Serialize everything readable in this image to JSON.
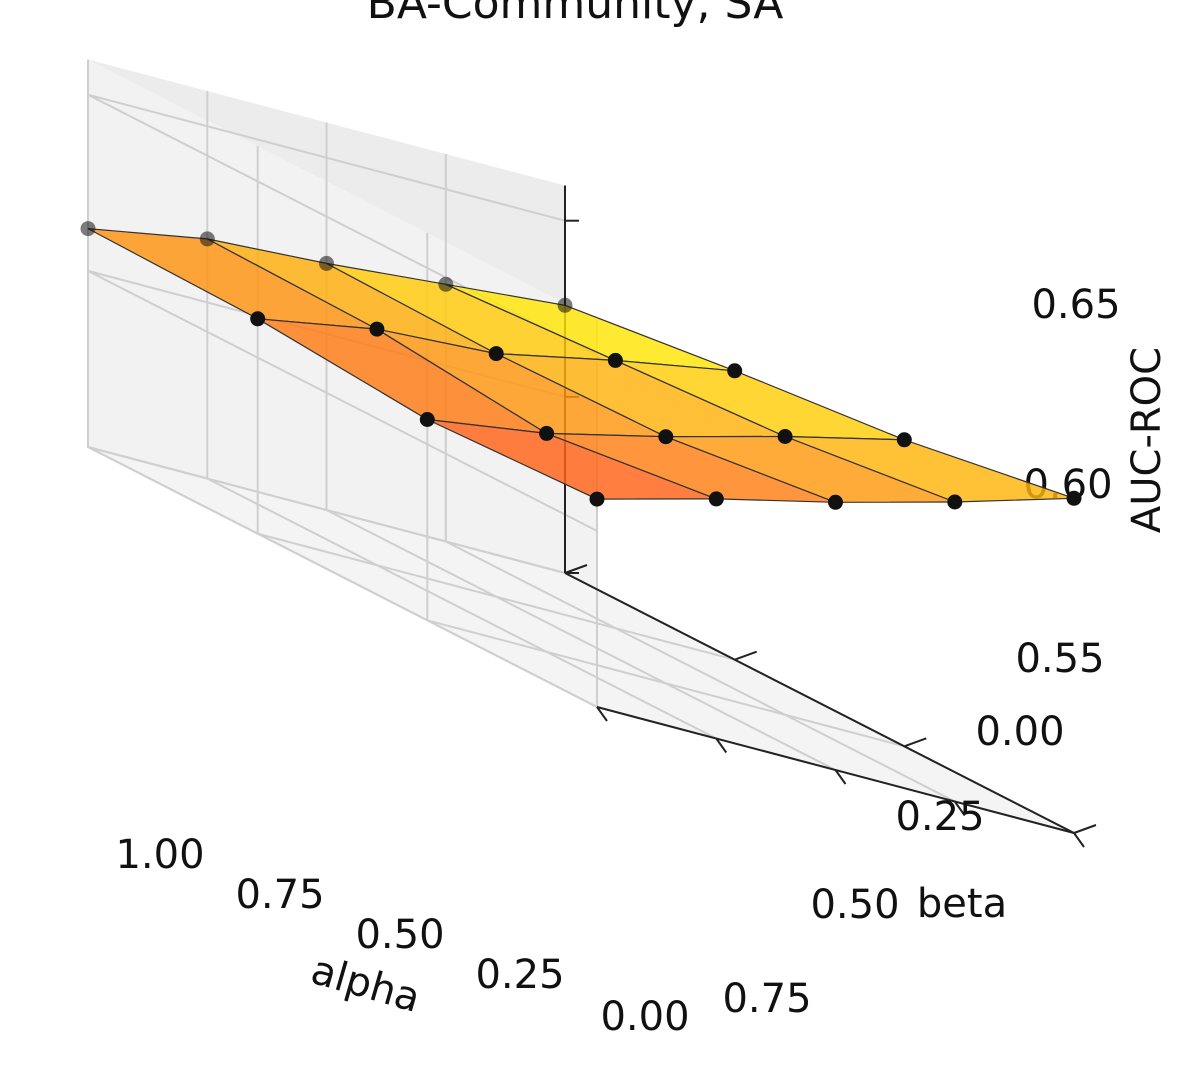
{
  "chart_data": {
    "type": "surface3d",
    "title": "BA-Community, SA",
    "xlabel": "alpha",
    "ylabel": "beta",
    "zlabel": "AUC-ROC",
    "alpha_values": [
      0.0,
      0.25,
      0.5,
      0.75,
      1.0
    ],
    "beta_values": [
      0.0,
      0.25,
      0.5,
      0.75
    ],
    "zlim": [
      0.55,
      0.66
    ],
    "x_ticks": [
      "1.00",
      "0.75",
      "0.50",
      "0.25",
      "0.00"
    ],
    "y_ticks": [
      "0.00",
      "0.25",
      "0.50",
      "0.75"
    ],
    "z_ticks": [
      "0.55",
      "0.60",
      "0.65"
    ],
    "grid": true,
    "colormap": "autumn",
    "auc_grid": [
      {
        "beta": 0.0,
        "auc": [
          0.626,
          0.623,
          0.62,
          0.618,
          0.612
        ]
      },
      {
        "beta": 0.25,
        "auc": [
          0.632,
          0.626,
          0.619,
          0.617,
          0.611
        ]
      },
      {
        "beta": 0.5,
        "auc": [
          0.637,
          0.629,
          0.62,
          0.612,
          0.607
        ]
      },
      {
        "beta": 0.75,
        "auc": [
          0.645,
          0.635,
          0.626,
          0.618,
          0.609
        ]
      }
    ]
  }
}
